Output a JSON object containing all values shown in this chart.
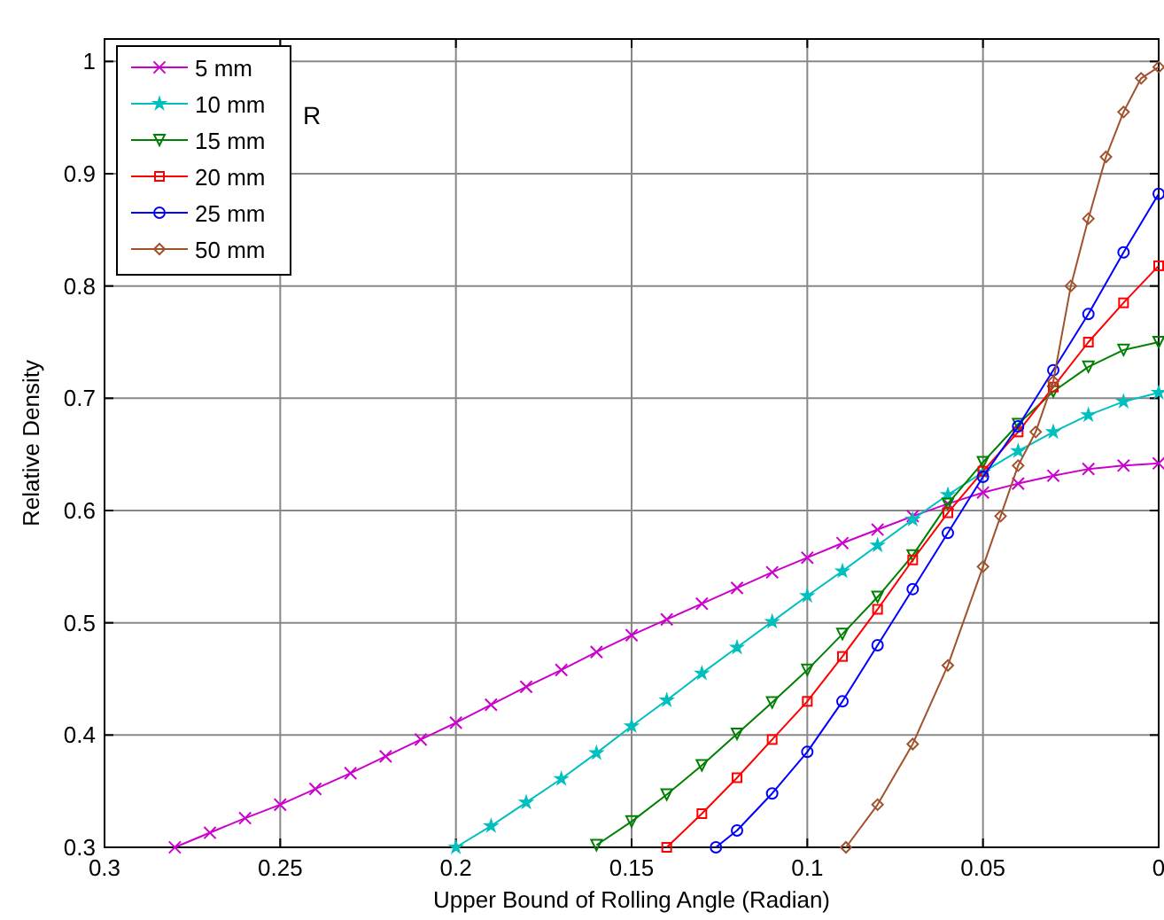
{
  "chart_data": {
    "type": "line",
    "xlabel": "Upper Bound of Rolling Angle (Radian)",
    "ylabel": "Relative Density",
    "annotations": [
      "R"
    ],
    "xlim": [
      0.3,
      0
    ],
    "xticks": [
      0.3,
      0.25,
      0.2,
      0.15,
      0.1,
      0.05,
      0
    ],
    "ylim": [
      0.3,
      1.02
    ],
    "yticks": [
      0.3,
      0.4,
      0.5,
      0.6,
      0.7,
      0.8,
      0.9,
      1
    ],
    "grid": true,
    "legend": "top left",
    "line_style": "solid",
    "series": [
      {
        "name": "5 mm",
        "color": "#cc00cc",
        "marker": "cross",
        "x": [
          0.28,
          0.27,
          0.26,
          0.25,
          0.24,
          0.23,
          0.22,
          0.21,
          0.2,
          0.19,
          0.18,
          0.17,
          0.16,
          0.15,
          0.14,
          0.13,
          0.12,
          0.11,
          0.1,
          0.09,
          0.08,
          0.07,
          0.06,
          0.05,
          0.04,
          0.03,
          0.02,
          0.01,
          0
        ],
        "values": [
          0.3,
          0.313,
          0.326,
          0.338,
          0.352,
          0.366,
          0.381,
          0.396,
          0.411,
          0.427,
          0.443,
          0.458,
          0.474,
          0.489,
          0.503,
          0.517,
          0.531,
          0.545,
          0.558,
          0.571,
          0.583,
          0.595,
          0.606,
          0.616,
          0.624,
          0.631,
          0.637,
          0.64,
          0.642
        ]
      },
      {
        "name": "10 mm",
        "color": "#00bfbf",
        "marker": "star",
        "x": [
          0.2,
          0.19,
          0.18,
          0.17,
          0.16,
          0.15,
          0.14,
          0.13,
          0.12,
          0.11,
          0.1,
          0.09,
          0.08,
          0.07,
          0.06,
          0.05,
          0.04,
          0.03,
          0.02,
          0.01,
          0
        ],
        "values": [
          0.3,
          0.319,
          0.34,
          0.361,
          0.384,
          0.408,
          0.431,
          0.455,
          0.478,
          0.501,
          0.524,
          0.546,
          0.569,
          0.592,
          0.614,
          0.634,
          0.653,
          0.67,
          0.685,
          0.697,
          0.705
        ]
      },
      {
        "name": "15 mm",
        "color": "#008000",
        "marker": "triangle",
        "x": [
          0.16,
          0.15,
          0.14,
          0.13,
          0.12,
          0.11,
          0.1,
          0.09,
          0.08,
          0.07,
          0.06,
          0.05,
          0.04,
          0.03,
          0.02,
          0.01,
          0
        ],
        "values": [
          0.302,
          0.323,
          0.347,
          0.373,
          0.401,
          0.429,
          0.458,
          0.49,
          0.523,
          0.56,
          0.606,
          0.643,
          0.677,
          0.706,
          0.728,
          0.743,
          0.75
        ]
      },
      {
        "name": "20 mm",
        "color": "#ff0000",
        "marker": "square",
        "x": [
          0.14,
          0.13,
          0.12,
          0.11,
          0.1,
          0.09,
          0.08,
          0.07,
          0.06,
          0.05,
          0.04,
          0.03,
          0.02,
          0.01,
          0
        ],
        "values": [
          0.3,
          0.33,
          0.362,
          0.396,
          0.43,
          0.47,
          0.512,
          0.556,
          0.598,
          0.635,
          0.67,
          0.71,
          0.75,
          0.785,
          0.818
        ]
      },
      {
        "name": "25 mm",
        "color": "#0000ff",
        "marker": "circle",
        "x": [
          0.126,
          0.12,
          0.11,
          0.1,
          0.09,
          0.08,
          0.07,
          0.06,
          0.05,
          0.04,
          0.03,
          0.02,
          0.01,
          0
        ],
        "values": [
          0.3,
          0.315,
          0.348,
          0.385,
          0.43,
          0.48,
          0.53,
          0.58,
          0.63,
          0.675,
          0.725,
          0.775,
          0.83,
          0.882
        ]
      },
      {
        "name": "50 mm",
        "color": "#a0522d",
        "marker": "diamond",
        "x": [
          0.089,
          0.08,
          0.07,
          0.06,
          0.05,
          0.045,
          0.04,
          0.035,
          0.03,
          0.025,
          0.02,
          0.015,
          0.01,
          0.005,
          0
        ],
        "values": [
          0.3,
          0.338,
          0.392,
          0.462,
          0.55,
          0.595,
          0.64,
          0.67,
          0.715,
          0.8,
          0.86,
          0.915,
          0.955,
          0.985,
          0.995
        ]
      }
    ]
  }
}
